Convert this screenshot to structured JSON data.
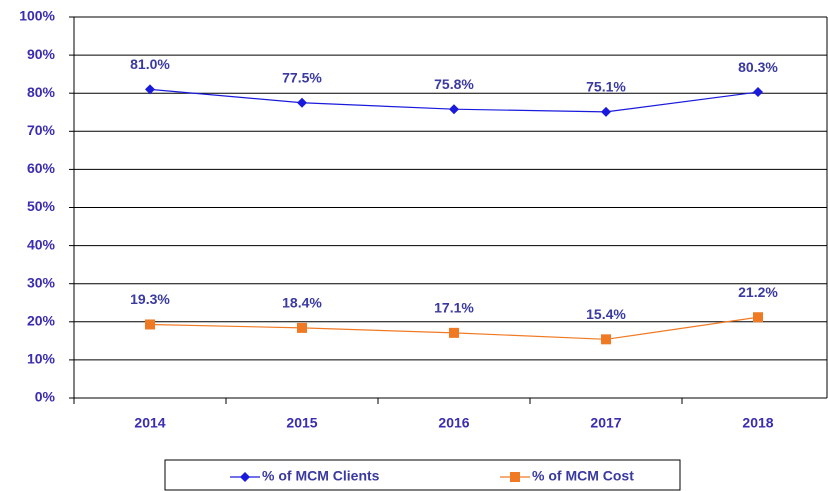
{
  "chart_data": {
    "type": "line",
    "categories": [
      "2014",
      "2015",
      "2016",
      "2017",
      "2018"
    ],
    "series": [
      {
        "name": "% of MCM Clients",
        "color": "#1a1adc",
        "marker": "diamond",
        "values": [
          81.0,
          77.5,
          75.8,
          75.1,
          80.3
        ],
        "value_labels": [
          "81.0%",
          "77.5%",
          "75.8%",
          "75.1%",
          "80.3%"
        ]
      },
      {
        "name": "% of MCM Cost",
        "color": "#f07a24",
        "marker": "square",
        "values": [
          19.3,
          18.4,
          17.1,
          15.4,
          21.2
        ],
        "value_labels": [
          "19.3%",
          "18.4%",
          "17.1%",
          "15.4%",
          "21.2%"
        ]
      }
    ],
    "ylim": [
      0,
      100
    ],
    "yticks": [
      {
        "value": 0,
        "label": "0%"
      },
      {
        "value": 10,
        "label": "10%"
      },
      {
        "value": 20,
        "label": "20%"
      },
      {
        "value": 30,
        "label": "30%"
      },
      {
        "value": 40,
        "label": "40%"
      },
      {
        "value": 50,
        "label": "50%"
      },
      {
        "value": 60,
        "label": "60%"
      },
      {
        "value": 70,
        "label": "70%"
      },
      {
        "value": 80,
        "label": "80%"
      },
      {
        "value": 90,
        "label": "90%"
      },
      {
        "value": 100,
        "label": "100%"
      }
    ],
    "grid": true,
    "legend": "bottom"
  }
}
